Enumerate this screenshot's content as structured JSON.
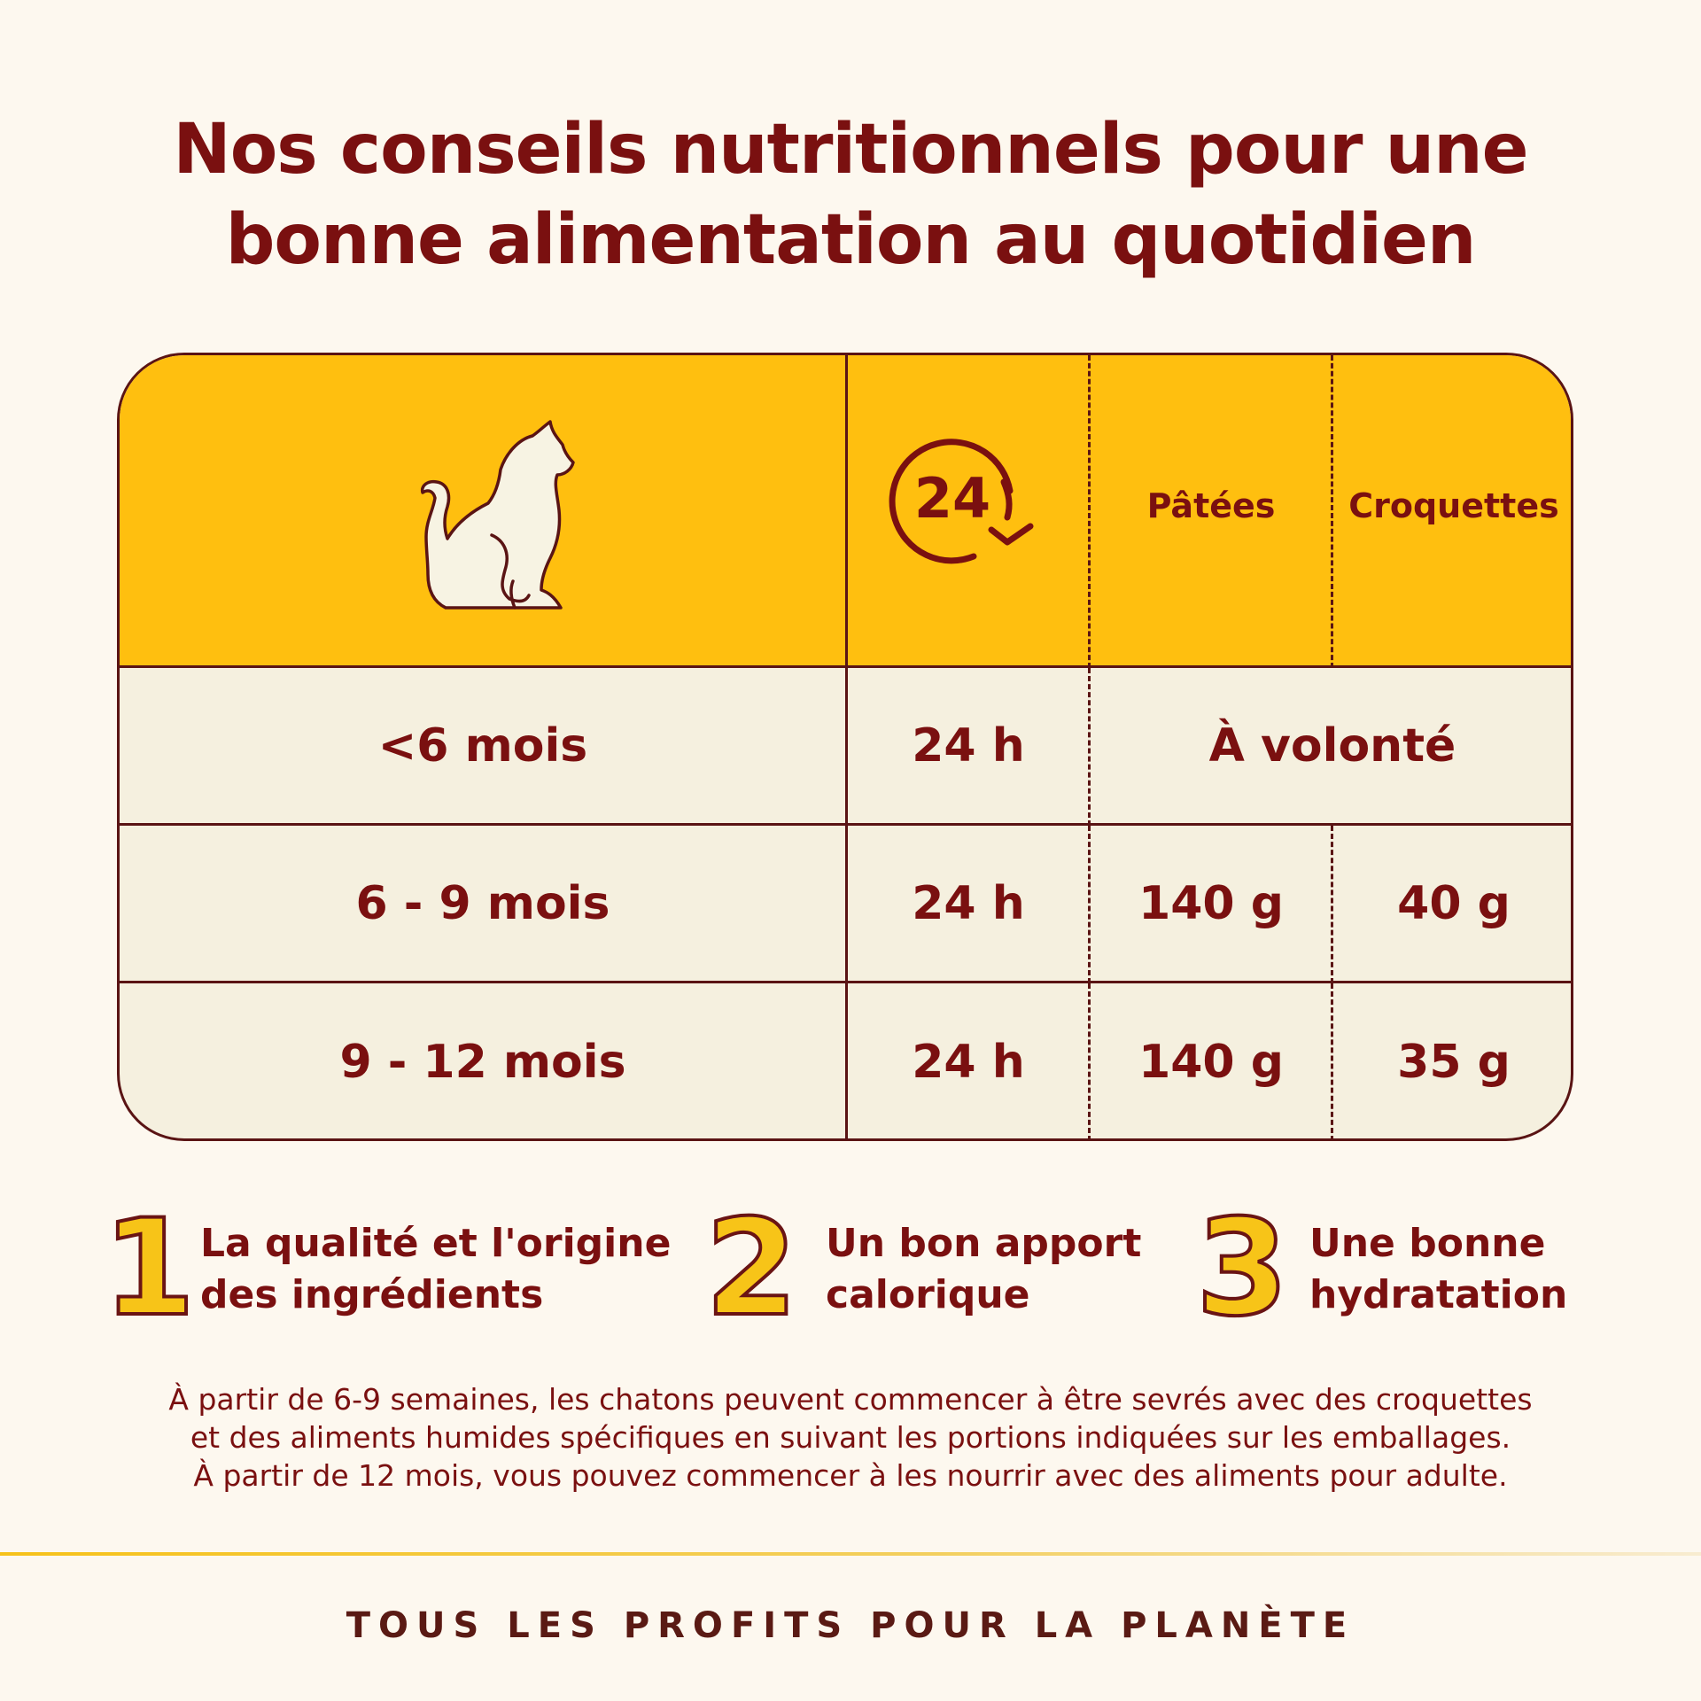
{
  "title": {
    "line1": "Nos conseils nutritionnels pour une",
    "line2": "bonne alimentation au quotidien"
  },
  "table": {
    "header": {
      "cat_icon": "cat-silhouette-icon",
      "duration_icon": "24h-clock-icon",
      "duration_icon_text": "24",
      "col_patees": "Pâtées",
      "col_croquettes": "Croquettes"
    },
    "rows": [
      {
        "age": "<6 mois",
        "duration": "24 h",
        "merged": "À volonté"
      },
      {
        "age": "6 - 9 mois",
        "duration": "24 h",
        "patees": "140 g",
        "croquettes": "40 g"
      },
      {
        "age": "9 - 12 mois",
        "duration": "24 h",
        "patees": "140 g",
        "croquettes": "35 g"
      }
    ]
  },
  "tips": [
    {
      "number": "1",
      "line1": "La qualité et l'origine",
      "line2": "des ingrédients"
    },
    {
      "number": "2",
      "line1": "Un bon apport",
      "line2": "calorique"
    },
    {
      "number": "3",
      "line1": "Une bonne",
      "line2": "hydratation"
    }
  ],
  "note": {
    "line1": "À partir de 6-9 semaines, les chatons peuvent commencer à être sevrés avec des croquettes",
    "line2": "et des aliments humides spécifiques en suivant les portions indiquées sur les emballages.",
    "line3": "À partir de 12 mois, vous pouvez commencer à les nourrir avec des aliments pour adulte."
  },
  "footer": "TOUS LES PROFITS POUR LA PLANÈTE",
  "colors": {
    "accent_yellow": "#ffbf0f",
    "dark_red": "#7a1010",
    "background": "#fdf8ef",
    "row_bg": "#f5f0df"
  }
}
